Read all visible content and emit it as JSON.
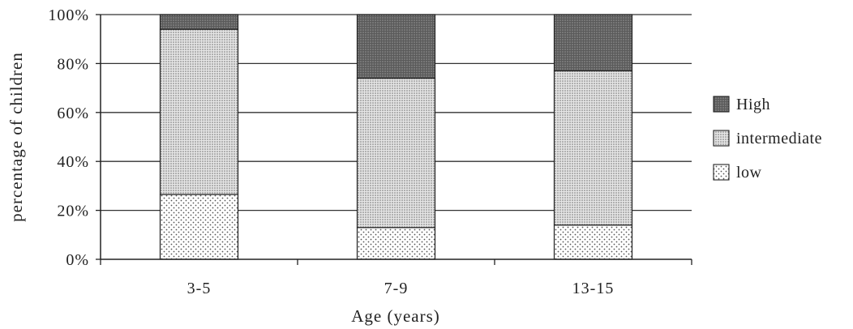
{
  "chart_data": {
    "type": "bar",
    "stacked": true,
    "title": "",
    "xlabel": "Age (years)",
    "ylabel": "percentage of children",
    "ylim": [
      0,
      100
    ],
    "yticks": [
      "0%",
      "20%",
      "40%",
      "60%",
      "80%",
      "100%"
    ],
    "grid": true,
    "legend_position": "right",
    "categories": [
      "3-5",
      "7-9",
      "13-15"
    ],
    "series": [
      {
        "name": "low",
        "values": [
          26.5,
          13,
          14
        ],
        "pattern": "sparse-dots",
        "color": "#ffffff"
      },
      {
        "name": "intermediate",
        "values": [
          67.5,
          61,
          63
        ],
        "pattern": "dense-dots",
        "color": "#d9d9d9"
      },
      {
        "name": "High",
        "values": [
          6,
          26,
          23
        ],
        "pattern": "dark-dots",
        "color": "#6e6e6e"
      }
    ],
    "legend_order": [
      "High",
      "intermediate",
      "low"
    ],
    "legend_labels": {
      "High": "High",
      "intermediate": "intermediate",
      "low": "low"
    }
  }
}
